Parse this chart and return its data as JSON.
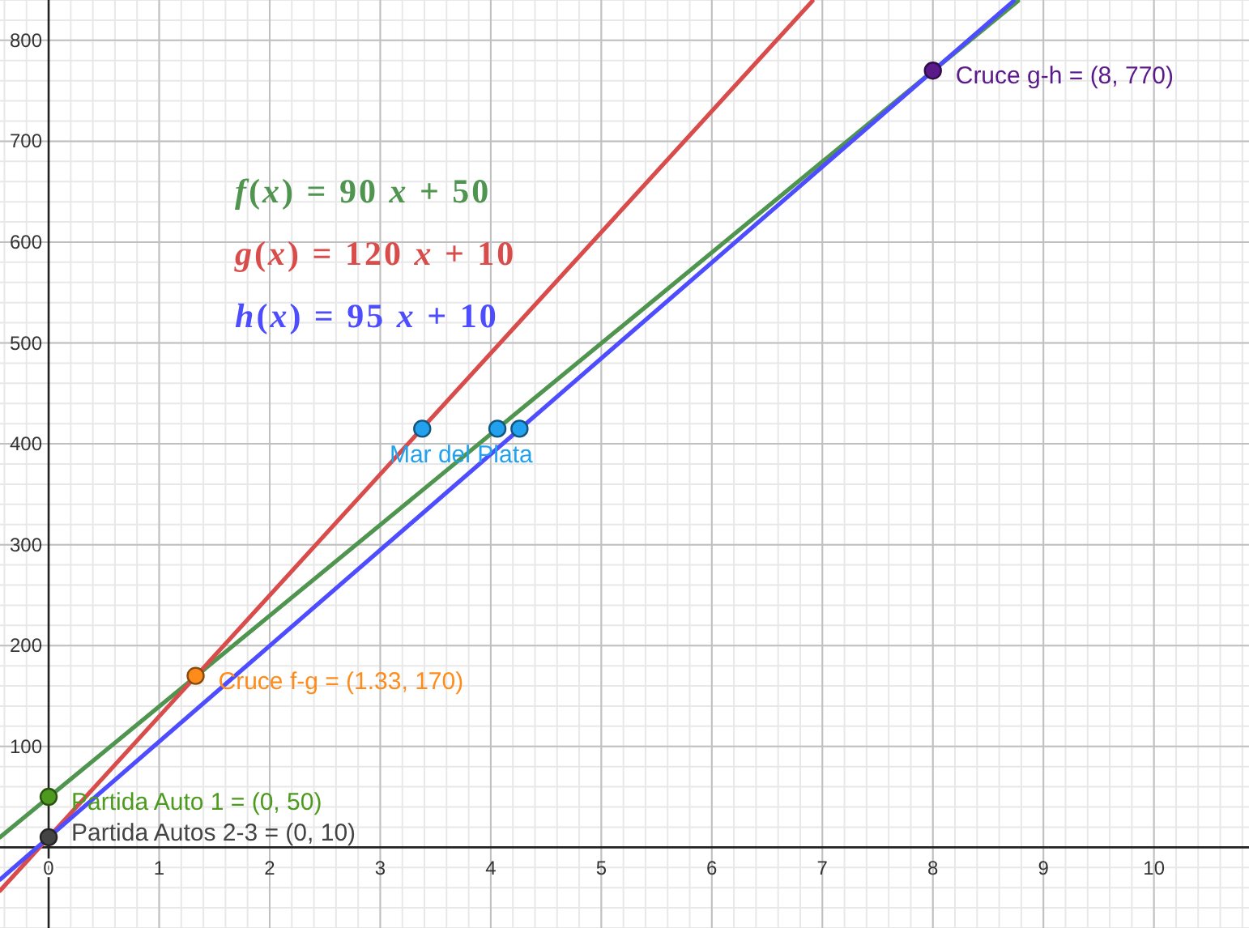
{
  "chart_data": {
    "type": "line",
    "xlim": [
      -0.44,
      10.86
    ],
    "ylim": [
      -80,
      840
    ],
    "xticks": [
      0,
      1,
      2,
      3,
      4,
      5,
      6,
      7,
      8,
      9,
      10
    ],
    "yticks": [
      100,
      200,
      300,
      400,
      500,
      600,
      700,
      800
    ],
    "grid": true,
    "legend": "top left",
    "series": [
      {
        "name": "f(x) = 90 x + 50",
        "type": "line",
        "color": "#4f944f",
        "x": [
          -0.44,
          8.77
        ],
        "values": [
          10,
          839
        ]
      },
      {
        "name": "g(x) = 120 x + 10",
        "type": "line",
        "color": "#d94c4c",
        "x": [
          -0.44,
          6.91
        ],
        "values": [
          -43,
          839
        ]
      },
      {
        "name": "h(x) = 95 x + 10",
        "type": "line",
        "color": "#4d4dff",
        "x": [
          -0.44,
          8.73
        ],
        "values": [
          -32,
          839
        ]
      },
      {
        "name": "Mar del Plata",
        "type": "scatter",
        "marker": "circle",
        "color": "#22a2ee",
        "x": [
          3.38,
          4.06,
          4.26
        ],
        "values": [
          415,
          415,
          415
        ]
      },
      {
        "name": "Cruce f-g = (1.33, 170)",
        "type": "scatter",
        "marker": "circle",
        "color": "#ff8c1a",
        "x": [
          1.33
        ],
        "values": [
          170
        ]
      },
      {
        "name": "Cruce g-h = (8, 770)",
        "type": "scatter",
        "marker": "circle",
        "color": "#5a1a8a",
        "x": [
          8
        ],
        "values": [
          770
        ]
      },
      {
        "name": "Partida Auto 1 = (0, 50)",
        "type": "scatter",
        "marker": "circle",
        "color": "#4d9a1f",
        "x": [
          0
        ],
        "values": [
          50
        ]
      },
      {
        "name": "Partida Autos 2-3 = (0, 10)",
        "type": "scatter",
        "marker": "circle",
        "color": "#444444",
        "x": [
          0
        ],
        "values": [
          10
        ]
      }
    ]
  }
}
